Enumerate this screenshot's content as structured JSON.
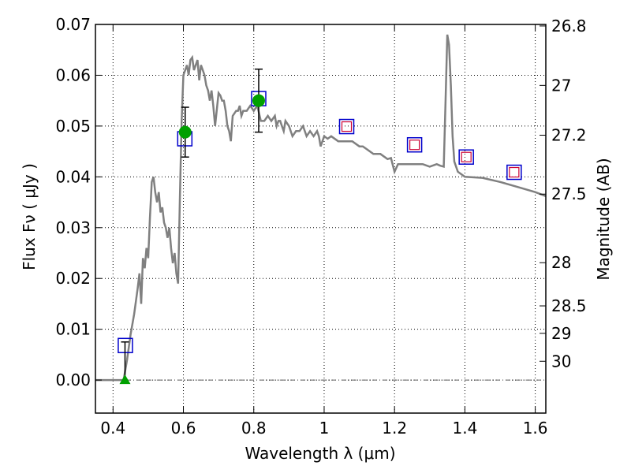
{
  "chart_data": {
    "type": "line",
    "xlabel": "Wavelength  λ (μm)",
    "ylabel": "Flux  Fν ( μJy )",
    "y2label": "Magnitude (AB)",
    "xlim": [
      0.35,
      1.63
    ],
    "ylim": [
      -0.0065,
      0.07
    ],
    "grid": true,
    "x_ticks": [
      0.4,
      0.6,
      0.8,
      1.0,
      1.2,
      1.4,
      1.6
    ],
    "x_tick_labels": [
      "0.4",
      "0.6",
      "0.8",
      "1",
      "1.2",
      "1.4",
      "1.6"
    ],
    "y_ticks": [
      0.0,
      0.01,
      0.02,
      0.03,
      0.04,
      0.05,
      0.06,
      0.07
    ],
    "y_tick_labels": [
      "0.00",
      "0.01",
      "0.02",
      "0.03",
      "0.04",
      "0.05",
      "0.06",
      "0.07"
    ],
    "y2_ticks": [
      {
        "label": "26.8",
        "flux": 0.0697
      },
      {
        "label": "27",
        "flux": 0.058
      },
      {
        "label": "27.2",
        "flux": 0.0482
      },
      {
        "label": "27.5",
        "flux": 0.0366
      },
      {
        "label": "28",
        "flux": 0.0231
      },
      {
        "label": "28.5",
        "flux": 0.0146
      },
      {
        "label": "29",
        "flux": 0.0092
      },
      {
        "label": "30",
        "flux": 0.0037
      }
    ],
    "series": [
      {
        "kind": "sed-model",
        "color": "#808080",
        "x": [
          0.35,
          0.43,
          0.44,
          0.45,
          0.46,
          0.47,
          0.475,
          0.48,
          0.485,
          0.49,
          0.495,
          0.5,
          0.505,
          0.51,
          0.515,
          0.52,
          0.525,
          0.53,
          0.535,
          0.54,
          0.545,
          0.55,
          0.555,
          0.56,
          0.565,
          0.57,
          0.575,
          0.58,
          0.585,
          0.59,
          0.595,
          0.6,
          0.605,
          0.61,
          0.615,
          0.62,
          0.625,
          0.63,
          0.635,
          0.64,
          0.645,
          0.65,
          0.655,
          0.66,
          0.665,
          0.67,
          0.675,
          0.68,
          0.685,
          0.69,
          0.7,
          0.705,
          0.71,
          0.715,
          0.72,
          0.725,
          0.73,
          0.735,
          0.74,
          0.75,
          0.755,
          0.76,
          0.765,
          0.77,
          0.78,
          0.79,
          0.8,
          0.81,
          0.82,
          0.83,
          0.84,
          0.85,
          0.86,
          0.865,
          0.87,
          0.875,
          0.88,
          0.885,
          0.89,
          0.9,
          0.91,
          0.92,
          0.93,
          0.94,
          0.95,
          0.96,
          0.97,
          0.98,
          0.985,
          0.99,
          1.0,
          1.01,
          1.02,
          1.04,
          1.06,
          1.08,
          1.1,
          1.11,
          1.12,
          1.14,
          1.16,
          1.18,
          1.19,
          1.2,
          1.21,
          1.22,
          1.25,
          1.28,
          1.3,
          1.32,
          1.33,
          1.34,
          1.345,
          1.35,
          1.355,
          1.36,
          1.365,
          1.37,
          1.38,
          1.4,
          1.45,
          1.5,
          1.55,
          1.6,
          1.63
        ],
        "y": [
          0.0,
          0.0,
          0.004,
          0.009,
          0.013,
          0.018,
          0.021,
          0.015,
          0.024,
          0.022,
          0.026,
          0.024,
          0.032,
          0.039,
          0.04,
          0.037,
          0.035,
          0.037,
          0.033,
          0.034,
          0.031,
          0.03,
          0.028,
          0.03,
          0.026,
          0.023,
          0.025,
          0.021,
          0.019,
          0.036,
          0.051,
          0.06,
          0.061,
          0.062,
          0.06,
          0.063,
          0.0635,
          0.061,
          0.062,
          0.063,
          0.059,
          0.062,
          0.061,
          0.06,
          0.058,
          0.057,
          0.055,
          0.057,
          0.054,
          0.05,
          0.0565,
          0.056,
          0.055,
          0.055,
          0.053,
          0.05,
          0.049,
          0.047,
          0.052,
          0.053,
          0.053,
          0.054,
          0.052,
          0.053,
          0.053,
          0.054,
          0.053,
          0.054,
          0.051,
          0.051,
          0.052,
          0.051,
          0.052,
          0.05,
          0.051,
          0.051,
          0.05,
          0.049,
          0.051,
          0.05,
          0.048,
          0.049,
          0.049,
          0.05,
          0.048,
          0.049,
          0.048,
          0.049,
          0.048,
          0.046,
          0.048,
          0.0475,
          0.048,
          0.047,
          0.047,
          0.047,
          0.046,
          0.046,
          0.0455,
          0.0445,
          0.0445,
          0.0435,
          0.0437,
          0.041,
          0.0425,
          0.0425,
          0.0425,
          0.0425,
          0.042,
          0.0425,
          0.0422,
          0.042,
          0.055,
          0.068,
          0.066,
          0.058,
          0.048,
          0.043,
          0.041,
          0.04,
          0.0398,
          0.039,
          0.038,
          0.037,
          0.0362
        ]
      }
    ],
    "markers": [
      {
        "kind": "upper-limit-triangle",
        "x": 0.434,
        "y": 0.0,
        "err": 0.0075,
        "color": "#00a000"
      },
      {
        "kind": "circle",
        "x": 0.605,
        "y": 0.0488,
        "err": 0.0049,
        "color": "#00a000"
      },
      {
        "kind": "circle",
        "x": 0.814,
        "y": 0.055,
        "err": 0.0062,
        "color": "#00a000"
      }
    ],
    "squares": [
      {
        "x": 0.435,
        "y": 0.0068,
        "inner": false
      },
      {
        "x": 0.604,
        "y": 0.0475,
        "inner": false
      },
      {
        "x": 0.814,
        "y": 0.0554,
        "inner": false
      },
      {
        "x": 1.064,
        "y": 0.0499,
        "inner": true
      },
      {
        "x": 1.257,
        "y": 0.0463,
        "inner": true
      },
      {
        "x": 1.404,
        "y": 0.0439,
        "inner": true
      },
      {
        "x": 1.54,
        "y": 0.0409,
        "inner": true
      }
    ],
    "square_color": "#0000cc",
    "inner_square_color": "#cc0033",
    "zero_line_color": "#606060"
  }
}
